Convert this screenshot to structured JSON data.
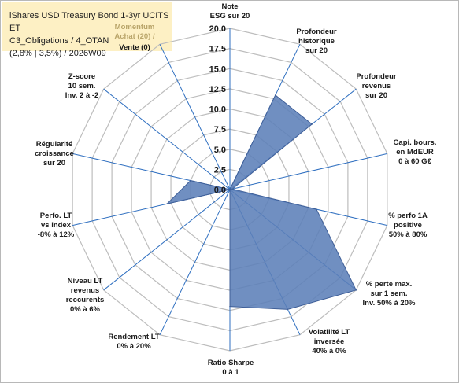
{
  "title": "iShares USD Treasury Bond 1-3yr UCITS ET\nC3_Obligations / 4_OTAN\n(2,8% | 3,5%) / 2026W09",
  "chart_data": {
    "type": "radar",
    "title": "iShares USD Treasury Bond 1-3yr UCITS ET C3_Obligations / 4_OTAN (2,8% | 3,5%) / 2026W09",
    "rlim": [
      0,
      20
    ],
    "ticks": [
      "0,0",
      "2,5",
      "5,0",
      "7,5",
      "10,0",
      "12,5",
      "15,0",
      "17,5",
      "20,0"
    ],
    "tick_values": [
      0,
      2.5,
      5,
      7.5,
      10,
      12.5,
      15,
      17.5,
      20
    ],
    "grid": true,
    "axes": [
      {
        "label": "Note\nESG sur 20",
        "muted": false
      },
      {
        "label": "Profondeur\nhistorique\nsur 20",
        "muted": false
      },
      {
        "label": "Profondeur\nrevenus\nsur 20",
        "muted": false
      },
      {
        "label": "Capi. bours.\nen MdEUR\n0 à 60 G€",
        "muted": false
      },
      {
        "label": "% perfo 1A\npositive\n50% à 80%",
        "muted": false
      },
      {
        "label": "% perte max.\nsur 1 sem.\nInv. 50% à 20%",
        "muted": false
      },
      {
        "label": "Volatilité LT\ninversée\n40% à 0%",
        "muted": false
      },
      {
        "label": "Ratio Sharpe\n0 à 1",
        "muted": false
      },
      {
        "label": "Rendement LT\n0% à 20%",
        "muted": false
      },
      {
        "label": "Niveau LT\nrevenus\nreccurents\n0% à 6%",
        "muted": false
      },
      {
        "label": "Perfo. LT\nvs index\n-8% à 12%",
        "muted": false
      },
      {
        "label": "Régularité\ncroissance\nsur 20",
        "muted": false
      },
      {
        "label": "Z-score\n10 sem.\nInv. 2 à -2",
        "muted": false
      },
      {
        "label": "Vente (0)",
        "muted": false
      },
      {
        "label": "Momentum\nAchat (20) /",
        "muted": true
      }
    ],
    "series": [
      {
        "values": [
          0,
          13,
          13,
          0.3,
          11,
          20,
          16.5,
          14.5,
          0,
          0,
          8,
          5,
          0,
          0
        ]
      }
    ],
    "colors": {
      "fill": "#5c7fb8",
      "stroke": "#3f5f98",
      "spoke": "#2f6fc0",
      "grid": "#bdbdbd"
    }
  }
}
